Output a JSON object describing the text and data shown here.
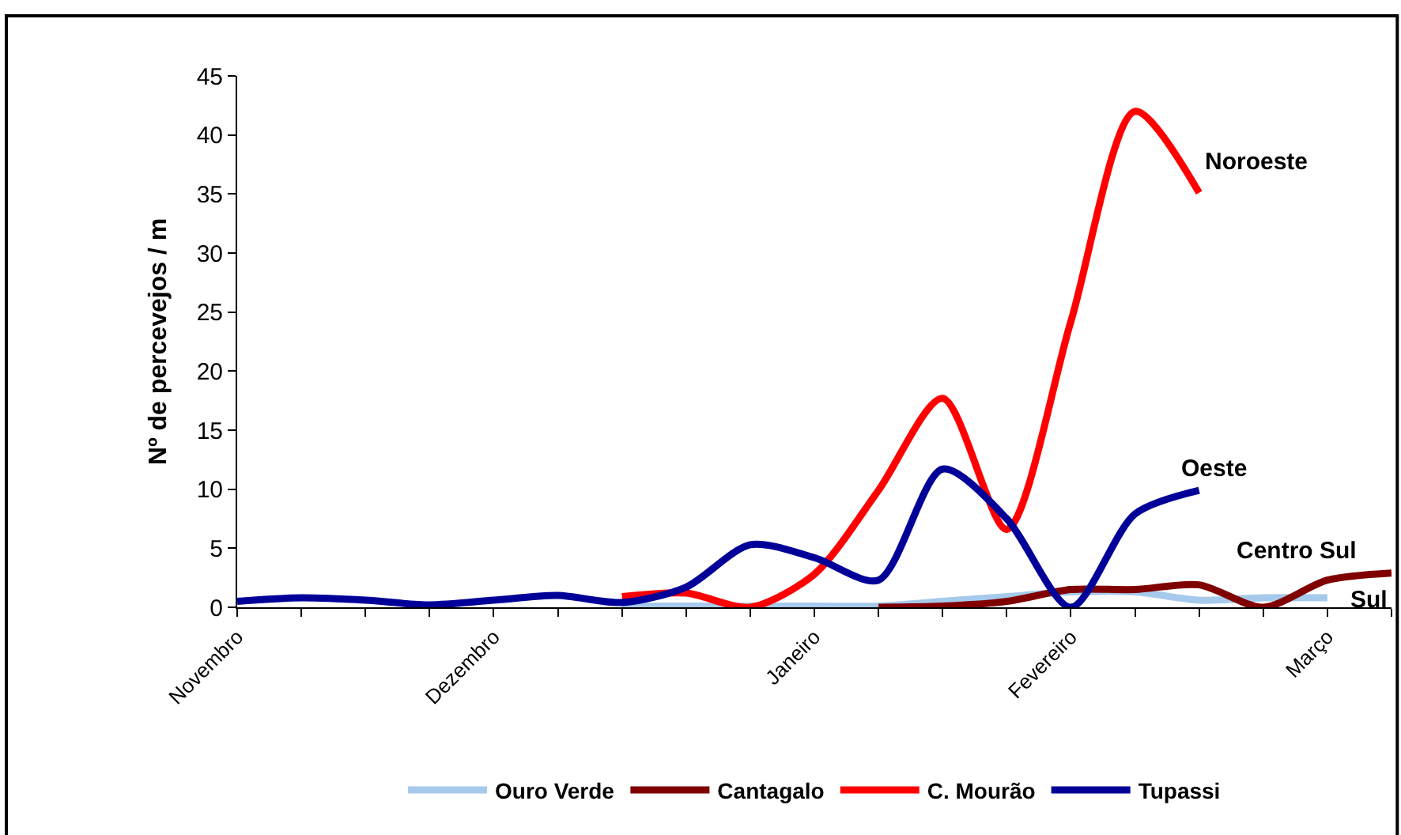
{
  "chart_data": {
    "type": "line",
    "ylabel": "Nº de percevejos / m",
    "categories": [
      "Novembro",
      null,
      null,
      null,
      "Dezembro",
      null,
      null,
      null,
      null,
      "Janeiro",
      null,
      null,
      null,
      "Fevereiro",
      null,
      null,
      null,
      "Março",
      null
    ],
    "ylim": [
      0,
      45
    ],
    "yticks": [
      0,
      5,
      10,
      15,
      20,
      25,
      30,
      35,
      40,
      45
    ],
    "legend": "bottom",
    "marker": "none",
    "line_style": "solid",
    "series": [
      {
        "name": "Ouro Verde",
        "color": "#a6caec",
        "values": [
          null,
          null,
          null,
          null,
          null,
          null,
          0.1,
          0.1,
          0.1,
          0.1,
          0.1,
          0.5,
          0.9,
          1.3,
          1.3,
          0.6,
          0.8,
          0.8,
          null
        ]
      },
      {
        "name": "Cantagalo",
        "color": "#800000",
        "values": [
          null,
          null,
          null,
          null,
          null,
          null,
          null,
          null,
          null,
          null,
          0,
          0.1,
          0.5,
          1.5,
          1.5,
          1.9,
          0,
          2.3,
          2.9
        ]
      },
      {
        "name": "C. Mourão",
        "color": "#ff0000",
        "values": [
          null,
          null,
          null,
          null,
          null,
          null,
          0.9,
          1.2,
          0,
          2.8,
          9.9,
          17.7,
          6.6,
          24.2,
          42,
          35.1,
          null,
          null,
          null
        ]
      },
      {
        "name": "Tupassi",
        "color": "#000099",
        "values": [
          0.5,
          0.8,
          0.6,
          0.2,
          0.6,
          1.0,
          0.4,
          1.7,
          5.3,
          4.2,
          2.3,
          11.7,
          7.5,
          0,
          7.9,
          9.9,
          null,
          null,
          null
        ]
      }
    ],
    "annotations": [
      "Noroeste",
      "Oeste",
      "Centro Sul",
      "Sul"
    ]
  }
}
